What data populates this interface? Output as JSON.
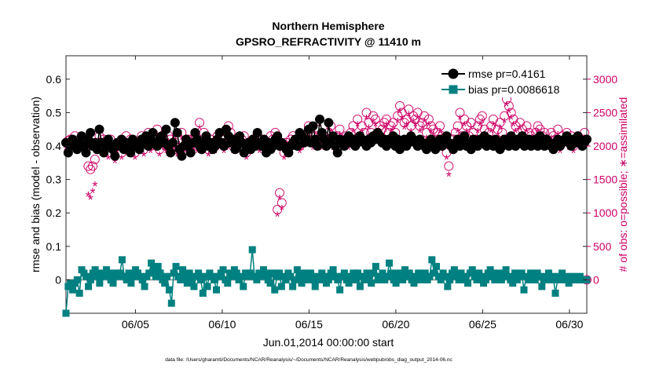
{
  "chart_data": {
    "type": "line",
    "title_line1": "Northern Hemisphere",
    "title_line2": "GPSRO_REFRACTIVITY @ 11410 m",
    "xlabel": "Jun.01,2014 00:00:00 start",
    "ylabel_left": "rmse and bias (model - observation)",
    "ylabel_right": "# of obs: o=possible; ∗=assimilated",
    "footer": "data file: /Users/gharamti/Documents/NCAR/Reanalysis/~/Documents/NCAR/Reanalysis/webpub/obs_diag_output_2014-06.nc",
    "x_range_days": [
      0,
      30
    ],
    "ylim_left": [
      -0.1,
      0.67
    ],
    "yticks_left": [
      "0",
      "0.1",
      "0.2",
      "0.3",
      "0.4",
      "0.5",
      "0.6"
    ],
    "yticks_left_values": [
      0,
      0.1,
      0.2,
      0.3,
      0.4,
      0.5,
      0.6
    ],
    "yticks_right": [
      "0",
      "500",
      "1000",
      "1500",
      "2000",
      "2500",
      "3000"
    ],
    "yticks_right_values": [
      0,
      500,
      1000,
      1500,
      2000,
      2500,
      3000
    ],
    "xticks": [
      "06/05",
      "06/10",
      "06/15",
      "06/20",
      "06/25",
      "06/30"
    ],
    "xticks_days": [
      4,
      9,
      14,
      19,
      24,
      29
    ],
    "right_axis_color": "#cc0066",
    "rmse_color": "#000000",
    "bias_color": "#008080",
    "obs_color": "#cc0066",
    "zero_line_color": "#a0a0a0",
    "legend_position": "top-right",
    "legend": [
      {
        "label": "rmse pr=0.4161",
        "marker": "circle",
        "color": "#000000"
      },
      {
        "label": "bias pr=0.0086618",
        "marker": "square",
        "color": "#008080"
      }
    ],
    "rmse": [
      0.41,
      0.38,
      0.4,
      0.42,
      0.4,
      0.39,
      0.41,
      0.43,
      0.4,
      0.38,
      0.42,
      0.44,
      0.4,
      0.41,
      0.39,
      0.45,
      0.41,
      0.38,
      0.4,
      0.42,
      0.4,
      0.39,
      0.37,
      0.41,
      0.4,
      0.42,
      0.39,
      0.41,
      0.4,
      0.38,
      0.42,
      0.4,
      0.41,
      0.39,
      0.42,
      0.41,
      0.43,
      0.4,
      0.42,
      0.44,
      0.41,
      0.4,
      0.42,
      0.43,
      0.41,
      0.45,
      0.4,
      0.38,
      0.41,
      0.47,
      0.44,
      0.39,
      0.37,
      0.4,
      0.42,
      0.4,
      0.38,
      0.41,
      0.44,
      0.42,
      0.4,
      0.39,
      0.41,
      0.43,
      0.4,
      0.41,
      0.39,
      0.4,
      0.42,
      0.44,
      0.41,
      0.4,
      0.45,
      0.43,
      0.41,
      0.42,
      0.39,
      0.4,
      0.43,
      0.41,
      0.38,
      0.4,
      0.41,
      0.39,
      0.42,
      0.4,
      0.44,
      0.41,
      0.4,
      0.42,
      0.38,
      0.41,
      0.39,
      0.4,
      0.42,
      0.43,
      0.4,
      0.41,
      0.4,
      0.39,
      0.38,
      0.4,
      0.41,
      0.42,
      0.4,
      0.44,
      0.43,
      0.41,
      0.42,
      0.45,
      0.41,
      0.46,
      0.42,
      0.4,
      0.48,
      0.44,
      0.42,
      0.4,
      0.47,
      0.41,
      0.43,
      0.4,
      0.38,
      0.42,
      0.41,
      0.4,
      0.42,
      0.43,
      0.41,
      0.42,
      0.4,
      0.41,
      0.43,
      0.42,
      0.41,
      0.4,
      0.42,
      0.41,
      0.43,
      0.42,
      0.44,
      0.43,
      0.41,
      0.42,
      0.4,
      0.42,
      0.41,
      0.43,
      0.4,
      0.42,
      0.39,
      0.41,
      0.42,
      0.4,
      0.41,
      0.43,
      0.42,
      0.41,
      0.4,
      0.42,
      0.41,
      0.4,
      0.39,
      0.41,
      0.42,
      0.4,
      0.39,
      0.41,
      0.42,
      0.4,
      0.41,
      0.43,
      0.41,
      0.4,
      0.39,
      0.41,
      0.42,
      0.4,
      0.41,
      0.43,
      0.4,
      0.41,
      0.39,
      0.42,
      0.41,
      0.4,
      0.42,
      0.41,
      0.43,
      0.4,
      0.42,
      0.41,
      0.4,
      0.42,
      0.41,
      0.39,
      0.4,
      0.42,
      0.41,
      0.4,
      0.43,
      0.41,
      0.4,
      0.42,
      0.41,
      0.43,
      0.4,
      0.41,
      0.42,
      0.4,
      0.41,
      0.42,
      0.4,
      0.43,
      0.41,
      0.4,
      0.42,
      0.41,
      0.4,
      0.39,
      0.41,
      0.42,
      0.4,
      0.41,
      0.42,
      0.43,
      0.41,
      0.4,
      0.42,
      0.41,
      0.43,
      0.42,
      0.4,
      0.41,
      0.42
    ],
    "bias": [
      -0.1,
      -0.02,
      -0.01,
      -0.03,
      -0.01,
      0.0,
      -0.04,
      0.03,
      0.02,
      0.01,
      -0.02,
      0.0,
      0.02,
      0.03,
      0.01,
      -0.01,
      0.02,
      0.01,
      0.03,
      0.02,
      0.0,
      -0.01,
      0.02,
      0.01,
      0.02,
      0.06,
      0.01,
      0.0,
      0.02,
      -0.01,
      0.01,
      0.03,
      0.02,
      0.01,
      0.0,
      -0.02,
      0.01,
      0.02,
      0.05,
      0.03,
      0.01,
      0.04,
      0.02,
      0.0,
      -0.01,
      0.01,
      -0.03,
      -0.07,
      0.02,
      0.04,
      0.01,
      0.0,
      0.03,
      0.01,
      -0.01,
      0.02,
      0.0,
      -0.02,
      0.01,
      0.02,
      0.0,
      -0.04,
      0.01,
      -0.02,
      0.02,
      0.01,
      0.0,
      -0.03,
      0.01,
      0.02,
      0.03,
      0.0,
      -0.01,
      0.02,
      0.01,
      0.03,
      0.02,
      0.0,
      0.01,
      -0.02,
      0.02,
      0.01,
      0.02,
      0.09,
      0.01,
      0.0,
      0.02,
      0.01,
      0.03,
      0.02,
      0.0,
      -0.01,
      0.02,
      -0.03,
      0.01,
      0.02,
      -0.02,
      0.01,
      0.0,
      0.02,
      0.01,
      -0.02,
      0.0,
      0.03,
      0.01,
      -0.01,
      0.02,
      0.0,
      0.01,
      0.02,
      0.0,
      -0.02,
      0.01,
      0.0,
      0.02,
      0.01,
      -0.01,
      0.0,
      0.02,
      0.03,
      0.01,
      0.0,
      -0.03,
      0.01,
      0.02,
      0.0,
      -0.01,
      0.01,
      0.02,
      0.0,
      0.02,
      -0.02,
      0.01,
      0.0,
      0.02,
      0.01,
      -0.01,
      0.02,
      0.04,
      0.0,
      0.01,
      0.02,
      0.0,
      0.01,
      0.05,
      0.02,
      0.0,
      -0.01,
      0.02,
      0.01,
      0.0,
      0.03,
      0.01,
      0.02,
      0.0,
      -0.01,
      0.01,
      0.02,
      0.0,
      0.01,
      0.02,
      0.0,
      0.01,
      0.06,
      0.02,
      0.04,
      0.01,
      0.0,
      0.02,
      0.01,
      -0.02,
      0.0,
      0.02,
      0.03,
      0.01,
      0.0,
      0.02,
      0.01,
      0.0,
      -0.01,
      0.02,
      0.03,
      0.01,
      0.0,
      0.02,
      0.01,
      -0.01,
      0.0,
      0.02,
      0.03,
      0.01,
      0.0,
      0.02,
      0.01,
      0.0,
      0.02,
      0.03,
      0.01,
      0.0,
      -0.01,
      0.02,
      0.0,
      0.01,
      0.02,
      -0.03,
      0.01,
      0.0,
      0.02,
      0.01,
      0.0,
      0.02,
      0.01,
      -0.02,
      0.0,
      0.01,
      0.02,
      0.0,
      0.01,
      -0.04,
      0.0,
      0.01,
      0.02,
      0.0,
      0.01,
      -0.01,
      0.0,
      0.01,
      0.0,
      0.0,
      0.01,
      0.0,
      0.0,
      0.0
    ],
    "obs_possible": [
      2050,
      2080,
      2100,
      2060,
      2150,
      2000,
      2100,
      2050,
      1980,
      2100,
      1700,
      1650,
      1700,
      1800,
      2050,
      2150,
      2000,
      2100,
      2050,
      1900,
      2100,
      1950,
      1850,
      2000,
      2050,
      1900,
      2050,
      2150,
      2000,
      2100,
      2050,
      1900,
      2050,
      2000,
      2150,
      1950,
      2100,
      2200,
      2000,
      2050,
      2100,
      2250,
      1950,
      2100,
      2050,
      2000,
      2150,
      2100,
      2000,
      2050,
      1950,
      2100,
      2200,
      1980,
      2050,
      2100,
      2000,
      2050,
      2150,
      2000,
      2350,
      2050,
      2200,
      2100,
      1950,
      2100,
      2050,
      2000,
      2150,
      2050,
      2100,
      2000,
      2050,
      2300,
      2200,
      2000,
      2100,
      2050,
      2000,
      2100,
      2150,
      1900,
      2050,
      2000,
      2100,
      2050,
      2150,
      2000,
      2100,
      2050,
      2000,
      2050,
      2150,
      2100,
      2200,
      1050,
      1300,
      1150,
      1900,
      2050,
      2000,
      2100,
      2150,
      2050,
      2100,
      2000,
      2050,
      2150,
      2100,
      2300,
      2200,
      2050,
      2150,
      2250,
      2100,
      2050,
      2150,
      2100,
      2200,
      2300,
      2050,
      2100,
      2150,
      2250,
      2100,
      2050,
      2150,
      2050,
      2200,
      2300,
      2100,
      2400,
      2150,
      2300,
      2200,
      2500,
      2350,
      2200,
      2450,
      2400,
      2200,
      2300,
      2250,
      2350,
      2400,
      2200,
      2300,
      2350,
      2200,
      2450,
      2600,
      2500,
      2350,
      2400,
      2550,
      2300,
      2450,
      2400,
      2500,
      2300,
      2350,
      2450,
      2200,
      2400,
      2300,
      2250,
      2100,
      2200,
      2300,
      2150,
      2100,
      1900,
      1700,
      2000,
      2100,
      2200,
      2300,
      2500,
      2150,
      2400,
      2300,
      2150,
      2350,
      2200,
      2100,
      2300,
      2400,
      2450,
      2250,
      2100,
      2200,
      2300,
      2400,
      2100,
      2250,
      2350,
      2200,
      2450,
      2700,
      2600,
      2500,
      2400,
      2300,
      2200,
      2350,
      2250,
      2100,
      2300,
      2200,
      2150,
      2100,
      2200,
      2300,
      2250,
      2150,
      2200,
      2100,
      2050,
      2200,
      2150,
      2100,
      2250,
      2000,
      2150,
      2100,
      2200,
      2050,
      2150,
      2000,
      2100,
      2150,
      2050,
      2100,
      2200,
      0
    ],
    "obs_assimilated": [
      1950,
      2000,
      2020,
      1980,
      2050,
      1920,
      2000,
      1950,
      1900,
      1980,
      1250,
      1200,
      1300,
      1400,
      1950,
      2050,
      1900,
      2000,
      1950,
      1800,
      2000,
      1850,
      1750,
      1900,
      1950,
      1800,
      1950,
      2050,
      1900,
      2000,
      1950,
      1800,
      1950,
      1900,
      2050,
      1850,
      2000,
      2100,
      1900,
      1950,
      2000,
      2150,
      1850,
      2000,
      1950,
      1900,
      2050,
      2000,
      1900,
      1950,
      1850,
      2000,
      2100,
      1880,
      1950,
      2000,
      1900,
      1950,
      2050,
      1900,
      2250,
      1950,
      2100,
      2000,
      1850,
      2000,
      1950,
      1900,
      2050,
      1950,
      2000,
      1900,
      1950,
      2200,
      2100,
      1900,
      2000,
      1950,
      1900,
      2000,
      2050,
      1800,
      1950,
      1900,
      2000,
      1950,
      2050,
      1900,
      2000,
      1950,
      1900,
      1950,
      2050,
      2000,
      2100,
      950,
      1200,
      1050,
      1800,
      1950,
      1900,
      2000,
      2050,
      1950,
      2000,
      1900,
      1950,
      2050,
      2000,
      2200,
      2100,
      1950,
      2050,
      2150,
      2000,
      1950,
      2050,
      2000,
      2100,
      2200,
      1950,
      2000,
      2050,
      2150,
      2000,
      1950,
      2050,
      1950,
      2100,
      2200,
      2000,
      2300,
      2050,
      2200,
      2100,
      2400,
      2250,
      2100,
      2350,
      2300,
      2100,
      2200,
      2150,
      2250,
      2300,
      2100,
      2200,
      2250,
      2100,
      2350,
      2500,
      2400,
      2250,
      2300,
      2450,
      2200,
      2350,
      2300,
      2400,
      2200,
      2250,
      2350,
      2100,
      2300,
      2200,
      2150,
      2000,
      2100,
      2200,
      2050,
      2000,
      1800,
      1550,
      1900,
      2000,
      2100,
      2200,
      2400,
      2050,
      2300,
      2200,
      2050,
      2250,
      2100,
      2000,
      2200,
      2300,
      2350,
      2150,
      2000,
      2100,
      2200,
      2300,
      2000,
      2150,
      2250,
      2100,
      2350,
      2600,
      2500,
      2400,
      2300,
      2200,
      2100,
      2250,
      2150,
      2000,
      2200,
      2100,
      2050,
      2000,
      2100,
      2200,
      2150,
      2050,
      2100,
      2000,
      1950,
      2100,
      2050,
      2000,
      2150,
      1900,
      2050,
      2000,
      2100,
      1950,
      2050,
      1900,
      2000,
      2050,
      1950,
      2000,
      2100,
      0
    ]
  }
}
